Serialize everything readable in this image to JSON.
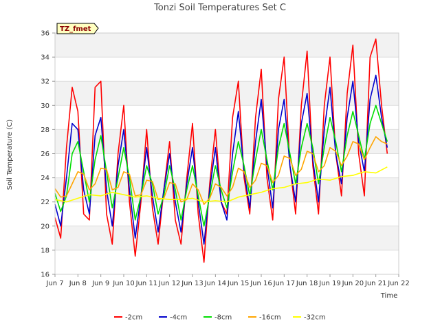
{
  "chart_data": {
    "type": "line",
    "title": "Tonzi Soil Temperatures Set C",
    "xlabel": "Time",
    "ylabel": "Soil Temperature (C)",
    "badge": "TZ_fmet",
    "xlim": [
      7,
      22
    ],
    "ylim": [
      16,
      36
    ],
    "x_ticks": [
      {
        "value": 7,
        "label": "Jun 7"
      },
      {
        "value": 8,
        "label": "Jun 8"
      },
      {
        "value": 9,
        "label": "Jun 9"
      },
      {
        "value": 10,
        "label": "Jun 10"
      },
      {
        "value": 11,
        "label": "Jun 11"
      },
      {
        "value": 12,
        "label": "Jun 12"
      },
      {
        "value": 13,
        "label": "Jun 13"
      },
      {
        "value": 14,
        "label": "Jun 14"
      },
      {
        "value": 15,
        "label": "Jun 15"
      },
      {
        "value": 16,
        "label": "Jun 16"
      },
      {
        "value": 17,
        "label": "Jun 17"
      },
      {
        "value": 18,
        "label": "Jun 18"
      },
      {
        "value": 19,
        "label": "Jun 19"
      },
      {
        "value": 20,
        "label": "Jun 20"
      },
      {
        "value": 21,
        "label": "Jun 21"
      },
      {
        "value": 22,
        "label": "Jun 22"
      }
    ],
    "y_ticks": [
      16,
      18,
      20,
      22,
      24,
      26,
      28,
      30,
      32,
      34,
      36
    ],
    "grid": true,
    "legend_position": "bottom",
    "series": [
      {
        "name": "-2cm",
        "color": "#ff0000",
        "x": [
          7.0,
          7.25,
          7.5,
          7.75,
          8.0,
          8.25,
          8.5,
          8.75,
          9.0,
          9.25,
          9.5,
          9.75,
          10.0,
          10.25,
          10.5,
          10.75,
          11.0,
          11.25,
          11.5,
          11.75,
          12.0,
          12.25,
          12.5,
          12.75,
          13.0,
          13.25,
          13.5,
          13.75,
          14.0,
          14.25,
          14.5,
          14.75,
          15.0,
          15.25,
          15.5,
          15.75,
          16.0,
          16.25,
          16.5,
          16.75,
          17.0,
          17.25,
          17.5,
          17.75,
          18.0,
          18.25,
          18.5,
          18.75,
          19.0,
          19.25,
          19.5,
          19.75,
          20.0,
          20.25,
          20.5,
          20.75,
          21.0,
          21.25,
          21.5
        ],
        "y": [
          20.7,
          19.0,
          26.5,
          31.5,
          29.5,
          21.0,
          20.5,
          31.5,
          32.0,
          21.0,
          18.5,
          26.0,
          30.0,
          22.0,
          17.5,
          22.0,
          28.0,
          21.5,
          18.5,
          23.0,
          27.0,
          20.5,
          18.5,
          24.0,
          28.5,
          21.0,
          17.0,
          23.5,
          28.0,
          22.0,
          21.0,
          29.0,
          32.0,
          24.0,
          21.0,
          29.0,
          33.0,
          24.0,
          20.5,
          30.5,
          34.0,
          25.0,
          21.0,
          30.0,
          34.5,
          25.0,
          21.0,
          30.0,
          34.0,
          26.0,
          22.5,
          31.0,
          35.0,
          26.0,
          22.5,
          34.0,
          35.5,
          30.0,
          26.0
        ]
      },
      {
        "name": "-4cm",
        "color": "#0000cc",
        "x": [
          7.0,
          7.25,
          7.5,
          7.75,
          8.0,
          8.25,
          8.5,
          8.75,
          9.0,
          9.25,
          9.5,
          9.75,
          10.0,
          10.25,
          10.5,
          10.75,
          11.0,
          11.25,
          11.5,
          11.75,
          12.0,
          12.25,
          12.5,
          12.75,
          13.0,
          13.25,
          13.5,
          13.75,
          14.0,
          14.25,
          14.5,
          14.75,
          15.0,
          15.25,
          15.5,
          15.75,
          16.0,
          16.25,
          16.5,
          16.75,
          17.0,
          17.25,
          17.5,
          17.75,
          18.0,
          18.25,
          18.5,
          18.75,
          19.0,
          19.25,
          19.5,
          19.75,
          20.0,
          20.25,
          20.5,
          20.75,
          21.0,
          21.25,
          21.5
        ],
        "y": [
          21.8,
          20.0,
          24.0,
          28.5,
          28.0,
          23.0,
          21.0,
          27.5,
          29.0,
          23.0,
          20.0,
          25.0,
          28.0,
          23.0,
          19.0,
          22.5,
          26.5,
          22.5,
          19.5,
          23.0,
          26.0,
          22.0,
          19.5,
          23.5,
          26.5,
          22.0,
          18.5,
          23.0,
          26.5,
          22.0,
          20.5,
          26.0,
          29.5,
          24.5,
          21.5,
          27.0,
          30.5,
          25.0,
          21.5,
          28.0,
          30.5,
          25.0,
          22.0,
          28.5,
          31.0,
          25.5,
          22.0,
          28.0,
          31.5,
          26.0,
          23.5,
          29.0,
          32.0,
          27.0,
          24.5,
          30.5,
          32.5,
          29.0,
          26.5
        ]
      },
      {
        "name": "-8cm",
        "color": "#00dd00",
        "x": [
          7.0,
          7.25,
          7.5,
          7.75,
          8.0,
          8.25,
          8.5,
          8.75,
          9.0,
          9.25,
          9.5,
          9.75,
          10.0,
          10.25,
          10.5,
          10.75,
          11.0,
          11.25,
          11.5,
          11.75,
          12.0,
          12.25,
          12.5,
          12.75,
          13.0,
          13.25,
          13.5,
          13.75,
          14.0,
          14.25,
          14.5,
          14.75,
          15.0,
          15.25,
          15.5,
          15.75,
          16.0,
          16.25,
          16.5,
          16.75,
          17.0,
          17.25,
          17.5,
          17.75,
          18.0,
          18.25,
          18.5,
          18.75,
          19.0,
          19.25,
          19.5,
          19.75,
          20.0,
          20.25,
          20.5,
          20.75,
          21.0,
          21.25,
          21.5
        ],
        "y": [
          22.7,
          21.2,
          22.5,
          26.0,
          27.0,
          24.5,
          22.0,
          25.5,
          27.5,
          24.5,
          21.5,
          24.0,
          26.5,
          24.0,
          20.5,
          22.5,
          25.0,
          23.5,
          21.0,
          22.5,
          25.0,
          23.0,
          20.5,
          23.0,
          25.0,
          22.5,
          20.0,
          22.5,
          25.0,
          23.0,
          21.5,
          24.5,
          27.0,
          25.0,
          22.5,
          25.5,
          28.0,
          25.5,
          23.0,
          26.5,
          28.5,
          26.0,
          23.5,
          26.5,
          28.5,
          26.5,
          23.5,
          26.5,
          29.0,
          27.0,
          24.5,
          27.5,
          29.5,
          27.5,
          25.5,
          28.5,
          30.0,
          28.5,
          27.0
        ]
      },
      {
        "name": "-16cm",
        "color": "#ffa500",
        "x": [
          7.0,
          7.25,
          7.5,
          7.75,
          8.0,
          8.25,
          8.5,
          8.75,
          9.0,
          9.25,
          9.5,
          9.75,
          10.0,
          10.25,
          10.5,
          10.75,
          11.0,
          11.25,
          11.5,
          11.75,
          12.0,
          12.25,
          12.5,
          12.75,
          13.0,
          13.25,
          13.5,
          13.75,
          14.0,
          14.25,
          14.5,
          14.75,
          15.0,
          15.25,
          15.5,
          15.75,
          16.0,
          16.25,
          16.5,
          16.75,
          17.0,
          17.25,
          17.5,
          17.75,
          18.0,
          18.25,
          18.5,
          18.75,
          19.0,
          19.25,
          19.5,
          19.75,
          20.0,
          20.25,
          20.5,
          20.75,
          21.0,
          21.25,
          21.5
        ],
        "y": [
          23.1,
          22.4,
          22.5,
          23.5,
          24.5,
          24.3,
          23.0,
          23.5,
          24.8,
          24.7,
          23.0,
          23.2,
          24.5,
          24.3,
          22.5,
          22.6,
          23.8,
          23.7,
          22.2,
          22.3,
          23.6,
          23.5,
          22.0,
          22.2,
          23.5,
          23.0,
          21.8,
          22.3,
          23.5,
          23.2,
          22.5,
          23.2,
          24.8,
          24.5,
          23.2,
          23.8,
          25.2,
          25.0,
          23.6,
          24.2,
          25.8,
          25.6,
          24.2,
          24.7,
          26.2,
          26.0,
          24.5,
          25.0,
          26.5,
          26.2,
          25.0,
          25.8,
          27.0,
          26.8,
          25.5,
          26.5,
          27.4,
          27.0,
          26.8
        ]
      },
      {
        "name": "-32cm",
        "color": "#ffff00",
        "x": [
          7.0,
          7.5,
          8.0,
          8.5,
          9.0,
          9.5,
          10.0,
          10.5,
          11.0,
          11.5,
          12.0,
          12.5,
          13.0,
          13.5,
          14.0,
          14.5,
          15.0,
          15.5,
          16.0,
          16.5,
          17.0,
          17.5,
          18.0,
          18.5,
          19.0,
          19.5,
          20.0,
          20.5,
          21.0,
          21.5
        ],
        "y": [
          22.2,
          22.0,
          22.3,
          22.6,
          22.5,
          22.8,
          22.6,
          22.4,
          22.5,
          22.3,
          22.2,
          22.2,
          22.3,
          22.0,
          22.1,
          22.0,
          22.4,
          22.6,
          22.8,
          23.1,
          23.2,
          23.5,
          23.6,
          23.9,
          23.8,
          24.1,
          24.2,
          24.5,
          24.4,
          24.9
        ]
      }
    ]
  }
}
